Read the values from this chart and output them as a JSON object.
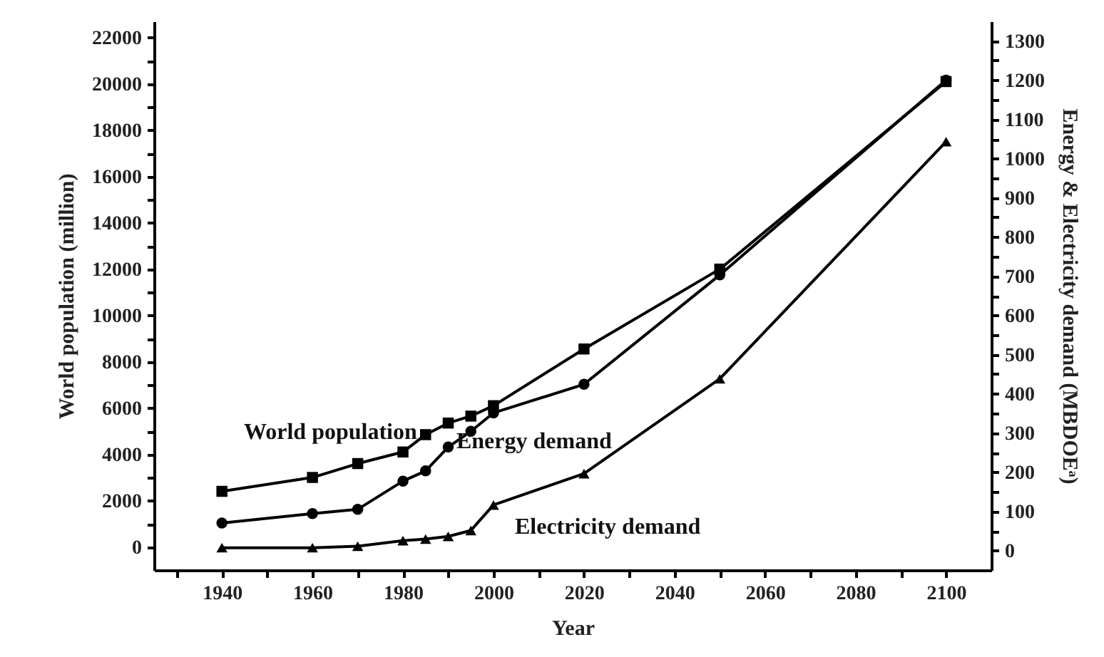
{
  "chart_data": {
    "type": "line",
    "xlabel": "Year",
    "ylabel": "World population (million)",
    "y2label": "Energy & Electricity demand (MBDOEᵃ)",
    "x": [
      1940,
      1960,
      1970,
      1980,
      1985,
      1990,
      1995,
      2000,
      2020,
      2050,
      2100
    ],
    "series": [
      {
        "name": "World population",
        "color": "#000000",
        "marker": "square",
        "values": [
          2400,
          3000,
          3600,
          4100,
          4850,
          5350,
          5650,
          6100,
          8550,
          12000,
          20100
        ]
      },
      {
        "name": "Energy demand",
        "color": "#000000",
        "marker": "circle",
        "axis": "y2",
        "values": [
          70,
          94,
          105,
          177,
          203,
          264,
          304,
          351,
          424,
          703,
          1200
        ]
      },
      {
        "name": "Electricity demand",
        "color": "#000000",
        "marker": "triangle",
        "axis": "y2",
        "values": [
          7,
          7,
          11,
          25,
          29,
          36,
          51,
          116,
          196,
          438,
          1043
        ]
      }
    ],
    "xlim": [
      1925,
      2110
    ],
    "xticks": [
      {
        "value": 1930,
        "label": null
      },
      1940,
      {
        "value": 1950,
        "label": null
      },
      1960,
      {
        "value": 1970,
        "label": null
      },
      1980,
      {
        "value": 1990,
        "label": null
      },
      2000,
      {
        "value": 2010,
        "label": null
      },
      2020,
      {
        "value": 2030,
        "label": null
      },
      2040,
      {
        "value": 2050,
        "label": null
      },
      2060,
      {
        "value": 2070,
        "label": null
      },
      2080,
      {
        "value": 2090,
        "label": null
      },
      2100
    ],
    "ylim": [
      -1000,
      22700
    ],
    "yticks": [
      0,
      {
        "value": 1000,
        "label": null
      },
      2000,
      {
        "value": 3000,
        "label": null
      },
      4000,
      {
        "value": 5000,
        "label": null
      },
      6000,
      {
        "value": 7000,
        "label": null
      },
      8000,
      {
        "value": 9000,
        "label": null
      },
      10000,
      {
        "value": 11000,
        "label": null
      },
      12000,
      {
        "value": 13000,
        "label": null
      },
      14000,
      {
        "value": 15000,
        "label": null
      },
      16000,
      {
        "value": 17000,
        "label": null
      },
      18000,
      {
        "value": 19000,
        "label": null
      },
      20000,
      {
        "value": 21000,
        "label": null
      },
      22000
    ],
    "y2lim": [
      -50,
      1350
    ],
    "y2ticks": [
      0,
      {
        "value": 50,
        "label": null
      },
      100,
      {
        "value": 150,
        "label": null
      },
      200,
      {
        "value": 250,
        "label": null
      },
      300,
      {
        "value": 350,
        "label": null
      },
      400,
      {
        "value": 450,
        "label": null
      },
      500,
      {
        "value": 550,
        "label": null
      },
      600,
      {
        "value": 650,
        "label": null
      },
      700,
      {
        "value": 750,
        "label": null
      },
      800,
      {
        "value": 850,
        "label": null
      },
      900,
      {
        "value": 950,
        "label": null
      },
      1000,
      {
        "value": 1050,
        "label": null
      },
      1100,
      {
        "value": 1150,
        "label": null
      },
      1200,
      {
        "value": 1250,
        "label": null
      },
      1300
    ],
    "grid": false,
    "legend": false,
    "line_style": "solid"
  }
}
